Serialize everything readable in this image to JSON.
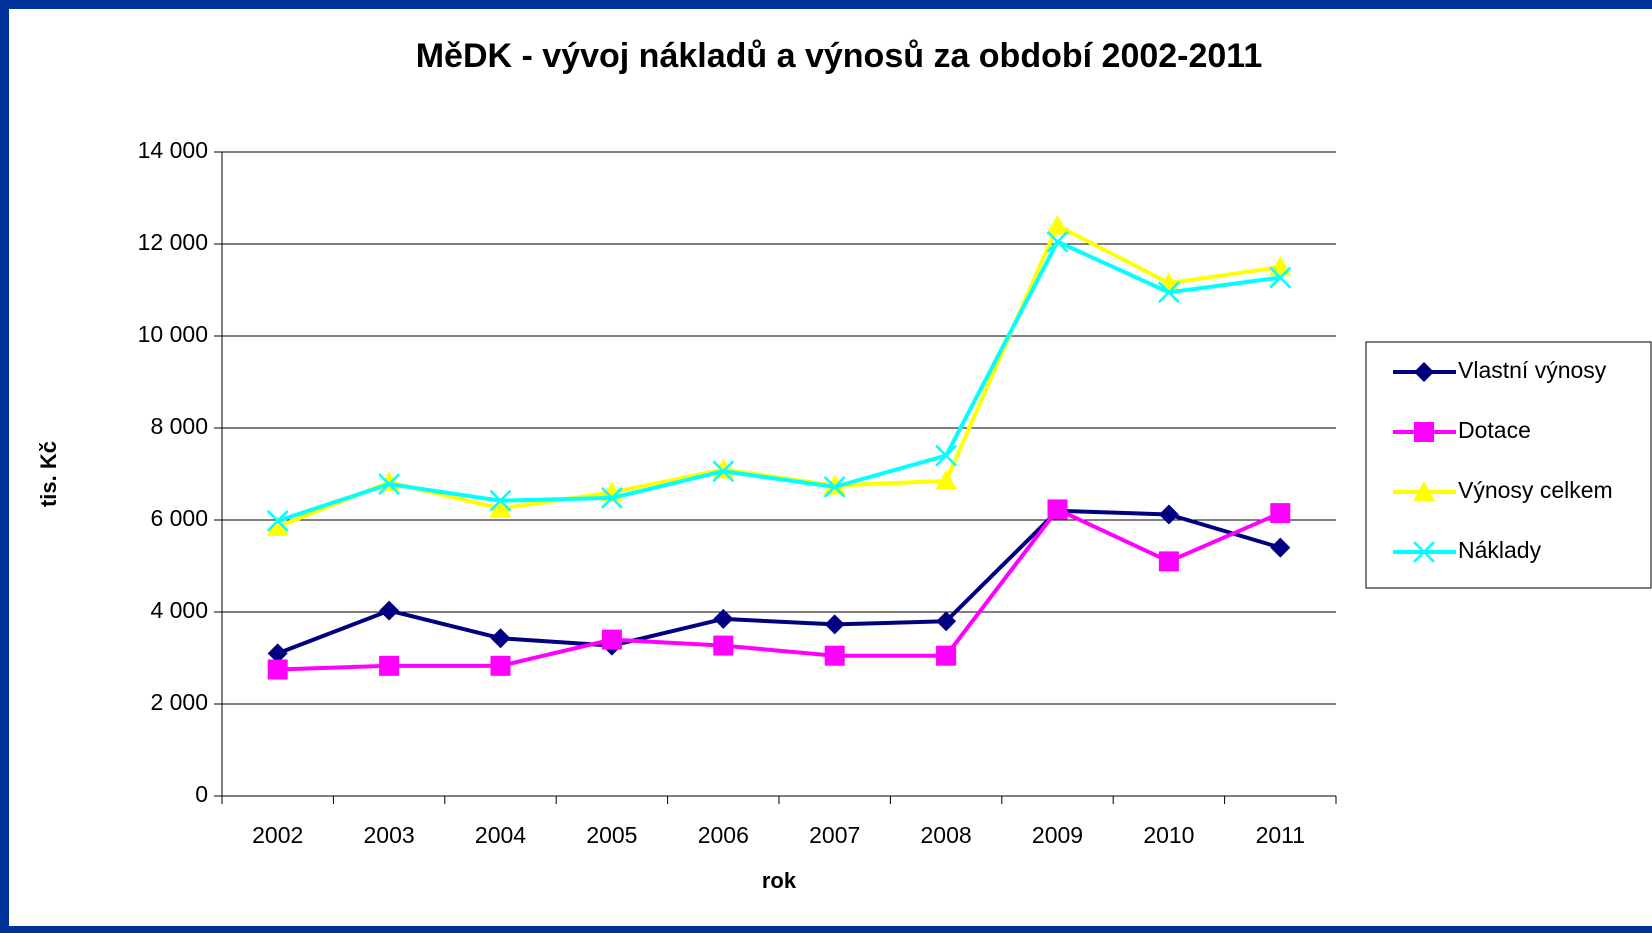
{
  "chart_data": {
    "type": "line",
    "title": "MěDK - vývoj nákladů a výnosů za období 2002-2011",
    "x_label": "rok",
    "y_label": "tis. Kč",
    "categories": [
      "2002",
      "2003",
      "2004",
      "2005",
      "2006",
      "2007",
      "2008",
      "2009",
      "2010",
      "2011"
    ],
    "ylim": [
      0,
      14000
    ],
    "yticks": [
      0,
      {
        "value": 2000,
        "label": "2 000"
      },
      {
        "value": 4000,
        "label": "4 000"
      },
      {
        "value": 6000,
        "label": "6 000"
      },
      {
        "value": 8000,
        "label": "8 000"
      },
      {
        "value": 10000,
        "label": "10 000"
      },
      {
        "value": 12000,
        "label": "12 000"
      },
      {
        "value": 14000,
        "label": "14 000"
      }
    ],
    "grid": true,
    "legend": "right",
    "series": [
      {
        "name": "Vlastní výnosy",
        "color": "#000080",
        "marker": "diamond",
        "values": [
          3100,
          4030,
          3430,
          3270,
          3850,
          3730,
          3800,
          6200,
          6120,
          5400
        ]
      },
      {
        "name": "Dotace",
        "color": "#ff00ff",
        "marker": "square",
        "values": [
          2750,
          2830,
          2830,
          3400,
          3270,
          3050,
          3050,
          6230,
          5100,
          6150
        ]
      },
      {
        "name": "Výnosy celkem",
        "color": "#ffff00",
        "marker": "triangle",
        "values": [
          5850,
          6820,
          6250,
          6600,
          7100,
          6750,
          6850,
          12400,
          11150,
          11500
        ]
      },
      {
        "name": "Náklady",
        "color": "#00ffff",
        "marker": "x",
        "values": [
          5980,
          6780,
          6420,
          6480,
          7060,
          6720,
          7400,
          12050,
          10950,
          11270
        ]
      }
    ]
  }
}
